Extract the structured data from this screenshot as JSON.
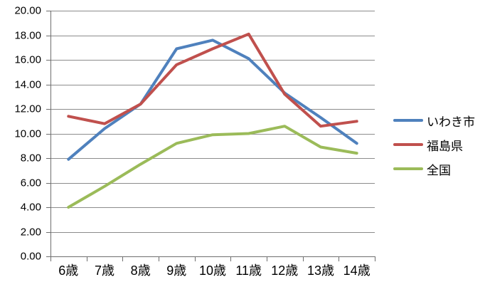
{
  "chart_data": {
    "type": "line",
    "categories": [
      "6歳",
      "7歳",
      "8歳",
      "9歳",
      "10歳",
      "11歳",
      "12歳",
      "13歳",
      "14歳"
    ],
    "series": [
      {
        "name": "いわき市",
        "color": "#4F81BD",
        "values": [
          7.9,
          10.4,
          12.4,
          16.9,
          17.6,
          16.1,
          13.3,
          11.3,
          9.2
        ]
      },
      {
        "name": "福島県",
        "color": "#C0504D",
        "values": [
          11.4,
          10.8,
          12.4,
          15.6,
          16.9,
          18.1,
          13.2,
          10.6,
          11.0
        ]
      },
      {
        "name": "全国",
        "color": "#9BBB59",
        "values": [
          4.0,
          5.7,
          7.5,
          9.2,
          9.9,
          10.0,
          10.6,
          8.9,
          8.4
        ]
      }
    ],
    "title": "",
    "xlabel": "",
    "ylabel": "",
    "ylim": [
      0,
      20
    ],
    "ytick_step": 2,
    "ytick_labels": [
      "0.00",
      "2.00",
      "4.00",
      "6.00",
      "8.00",
      "10.00",
      "12.00",
      "14.00",
      "16.00",
      "18.00",
      "20.00"
    ],
    "grid": true,
    "legend_position": "right"
  },
  "style": {
    "gridline_color": "#8C8C8C",
    "axis_color": "#6E6E6E",
    "text_color": "#000000",
    "background_color": "#FFFFFF",
    "line_width": 4
  }
}
